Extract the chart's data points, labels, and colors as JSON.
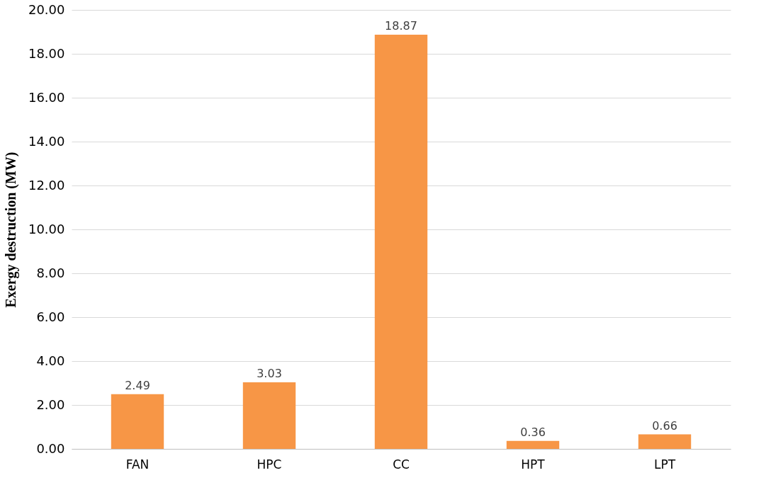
{
  "chart_data": {
    "type": "bar",
    "ylabel": "Exergy destruction (MW)",
    "categories": [
      "FAN",
      "HPC",
      "CC",
      "HPT",
      "LPT"
    ],
    "values": [
      2.49,
      3.03,
      18.87,
      0.36,
      0.66
    ],
    "color": "#f79646",
    "ylim": [
      0,
      20
    ],
    "yticks": [
      {
        "value": 0,
        "label": "0.00"
      },
      {
        "value": 2,
        "label": "2.00"
      },
      {
        "value": 4,
        "label": "4.00"
      },
      {
        "value": 6,
        "label": "6.00"
      },
      {
        "value": 8,
        "label": "8.00"
      },
      {
        "value": 10,
        "label": "10.00"
      },
      {
        "value": 12,
        "label": "12.00"
      },
      {
        "value": 14,
        "label": "14.00"
      },
      {
        "value": 16,
        "label": "16.00"
      },
      {
        "value": 18,
        "label": "18.00"
      },
      {
        "value": 20,
        "label": "20.00"
      }
    ],
    "grid": "y",
    "data_labels": true
  }
}
